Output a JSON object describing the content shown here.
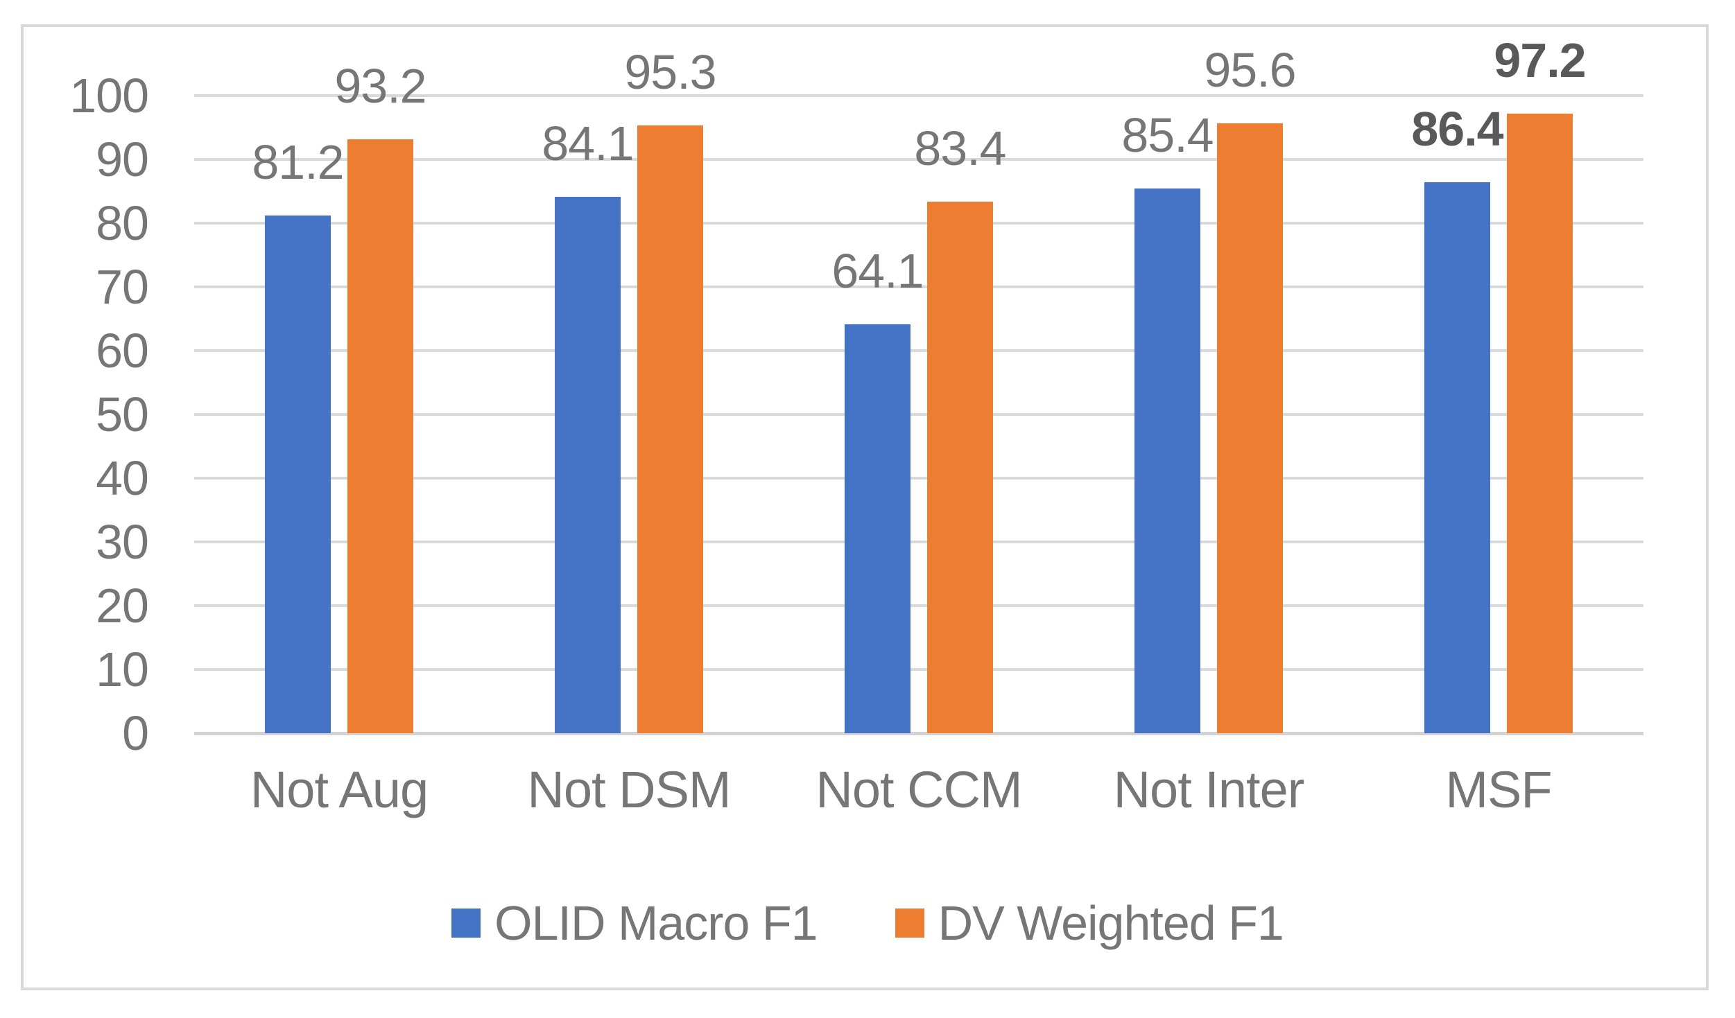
{
  "chart_data": {
    "type": "bar",
    "title": "",
    "xlabel": "",
    "ylabel": "",
    "categories": [
      "Not Aug",
      "Not DSM",
      "Not CCM",
      "Not Inter",
      "MSF"
    ],
    "series": [
      {
        "name": "OLID Macro F1",
        "color": "#4472C4",
        "values": [
          81.2,
          84.1,
          64.1,
          85.4,
          86.4
        ]
      },
      {
        "name": "DV Weighted F1",
        "color": "#ED7D31",
        "values": [
          93.2,
          95.3,
          83.4,
          95.6,
          97.2
        ]
      }
    ],
    "ylim": [
      0,
      100
    ],
    "yticks": [
      0,
      10,
      20,
      30,
      40,
      50,
      60,
      70,
      80,
      90,
      100
    ],
    "grid": true,
    "data_labels": true,
    "emphasized_category": "MSF",
    "legend_position": "bottom"
  },
  "style": {
    "text_color": "#767676",
    "emphasis_text_color": "#595959",
    "gridline_color": "#d9d9d9",
    "baseline_color": "#d2d2d2",
    "frame_border_color": "#d9d9d9",
    "series_blue": "#4472C4",
    "series_orange": "#ED7D31",
    "background": "#FFFFFF"
  }
}
